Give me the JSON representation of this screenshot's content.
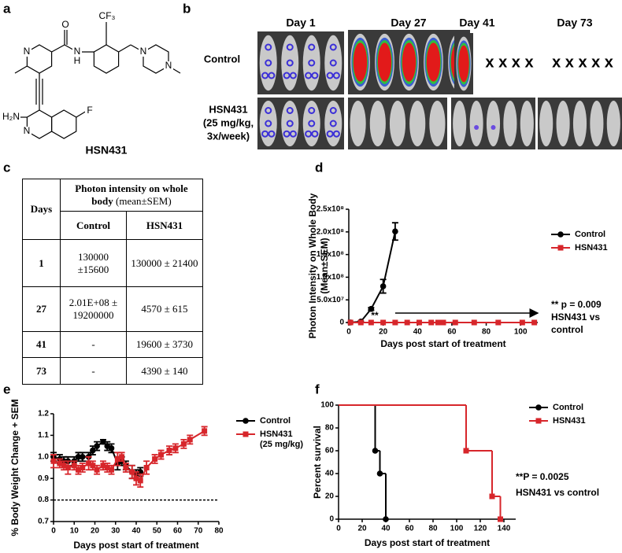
{
  "panel_labels": [
    "a",
    "b",
    "c",
    "d",
    "e",
    "f"
  ],
  "structure": {
    "atoms": [
      "CF₃",
      "O",
      "N",
      "H",
      "N",
      "N",
      "N",
      "H₂N",
      "N",
      "F"
    ],
    "name": "HSN431"
  },
  "imaging": {
    "days": [
      "Day 1",
      "Day 27",
      "Day 41",
      "Day 73"
    ],
    "groups": [
      [
        "Control"
      ],
      [
        "HSN431",
        "(25 mg/kg,",
        "3x/week)"
      ]
    ],
    "deceased": [
      "x x x x",
      "x x x x x"
    ]
  },
  "table": {
    "header": {
      "days": "Days",
      "measure": "Photon intensity on whole body",
      "unit": "(mean±SEM)",
      "columns": [
        "Control",
        "HSN431"
      ]
    },
    "rows": [
      [
        "1",
        "130000 ±15600",
        "130000 ± 21400"
      ],
      [
        "27",
        "2.01E+08 ± 19200000",
        "4570 ± 615"
      ],
      [
        "41",
        "-",
        "19600 ± 3730"
      ],
      [
        "73",
        "-",
        "4390 ± 140"
      ]
    ]
  },
  "chart_data": [
    {
      "type": "line",
      "ylabel": [
        "Photon Intensity on Whole Body",
        "(Mean±SEM)"
      ],
      "xlabel": "Days post start of treatment",
      "xlim": [
        0,
        110
      ],
      "xticks": [
        0,
        20,
        40,
        60,
        80,
        100
      ],
      "ylim": [
        0,
        250000000
      ],
      "yticks": [
        0,
        {
          "value": 50000000,
          "label": "5.0x10⁷"
        },
        {
          "value": 100000000,
          "label": "1.0x10⁸"
        },
        {
          "value": 150000000,
          "label": "1.5x10⁸"
        },
        {
          "value": 200000000,
          "label": "2.0x10⁸"
        },
        {
          "value": 250000000,
          "label": "2.5x10⁸"
        }
      ],
      "series": [
        {
          "name": "Control",
          "color": "#000000",
          "marker": "circle",
          "x": [
            1,
            7,
            13,
            20,
            27
          ],
          "values": [
            130000,
            2000000,
            30000000,
            80000000,
            201000000
          ],
          "errors": [
            15600,
            1000000,
            3000000,
            15000000,
            19200000
          ]
        },
        {
          "name": "HSN431",
          "color": "#d7262b",
          "marker": "square",
          "x": [
            1,
            7,
            13,
            20,
            27,
            34,
            41,
            48,
            52,
            55,
            62,
            73,
            87,
            101,
            108
          ],
          "values": [
            130000,
            5000,
            5000,
            5000,
            4570,
            5000,
            19600,
            5000,
            5000,
            5000,
            5000,
            4390,
            5000,
            5000,
            5000
          ]
        }
      ],
      "annotations": [
        "**",
        "** p = 0.009",
        "HSN431 vs",
        "control"
      ]
    },
    {
      "type": "line",
      "ylabel": "% Body Weight Change + SEM",
      "xlabel": "Days post start of treatment",
      "xlim": [
        0,
        80
      ],
      "xticks": [
        0,
        10,
        20,
        30,
        40,
        50,
        60,
        70,
        80
      ],
      "ylim": [
        0.7,
        1.2
      ],
      "yticks": [
        0.7,
        0.8,
        0.9,
        {
          "value": 1,
          "label": "1.0"
        },
        1.1,
        1.2
      ],
      "ref_line": 0.8,
      "series": [
        {
          "name": "Control",
          "color": "#000000",
          "marker": "circle",
          "x": [
            0,
            3,
            5,
            7,
            10,
            12,
            14,
            17,
            19,
            21,
            24,
            26,
            28,
            31,
            33,
            35,
            38,
            40,
            42
          ],
          "values": [
            1.0,
            0.99,
            0.98,
            0.98,
            0.98,
            1.0,
            1.0,
            1.0,
            1.03,
            1.05,
            1.07,
            1.05,
            1.04,
            0.97,
            0.98,
            0.96,
            0.93,
            0.92,
            0.93
          ],
          "errors": [
            0.02,
            0.02,
            0.02,
            0.02,
            0.02,
            0.02,
            0.02,
            0.02,
            0.02,
            0.02,
            0.01,
            0.02,
            0.02,
            0.03,
            0.02,
            0.02,
            0.03,
            0.02,
            0.02
          ]
        },
        {
          "name": "HSN431",
          "legend_note": "(25 mg/kg)",
          "color": "#d7262b",
          "marker": "square",
          "x": [
            0,
            3,
            5,
            7,
            10,
            12,
            14,
            17,
            19,
            21,
            24,
            26,
            28,
            31,
            33,
            35,
            38,
            40,
            42,
            45,
            49,
            52,
            56,
            59,
            63,
            66,
            73
          ],
          "values": [
            0.98,
            0.97,
            0.96,
            0.95,
            0.96,
            0.94,
            0.95,
            0.97,
            0.96,
            0.94,
            0.96,
            0.95,
            0.94,
            0.99,
            1.0,
            0.95,
            0.93,
            0.9,
            0.89,
            0.95,
            0.99,
            1.01,
            1.03,
            1.04,
            1.06,
            1.08,
            1.12
          ],
          "errors": [
            0.03,
            0.02,
            0.02,
            0.03,
            0.02,
            0.02,
            0.02,
            0.03,
            0.02,
            0.02,
            0.02,
            0.02,
            0.02,
            0.03,
            0.02,
            0.02,
            0.03,
            0.03,
            0.03,
            0.03,
            0.02,
            0.02,
            0.02,
            0.02,
            0.02,
            0.02,
            0.02
          ]
        }
      ]
    },
    {
      "type": "line",
      "step": true,
      "ylabel": "Percent survival",
      "xlabel": "Days post start of treatment",
      "xlim": [
        0,
        150
      ],
      "xticks": [
        0,
        20,
        40,
        60,
        80,
        100,
        120,
        140
      ],
      "ylim": [
        0,
        100
      ],
      "yticks": [
        0,
        20,
        40,
        60,
        80,
        100
      ],
      "series": [
        {
          "name": "Control",
          "color": "#000000",
          "marker": "circle",
          "x": [
            0,
            31,
            35,
            40
          ],
          "values": [
            100,
            60,
            40,
            0
          ]
        },
        {
          "name": "HSN431",
          "color": "#d7262b",
          "marker": "square",
          "x": [
            0,
            108,
            130,
            137
          ],
          "values": [
            100,
            60,
            20,
            0
          ]
        }
      ],
      "annotations": [
        "**P = 0.0025",
        "HSN431 vs control"
      ]
    }
  ]
}
